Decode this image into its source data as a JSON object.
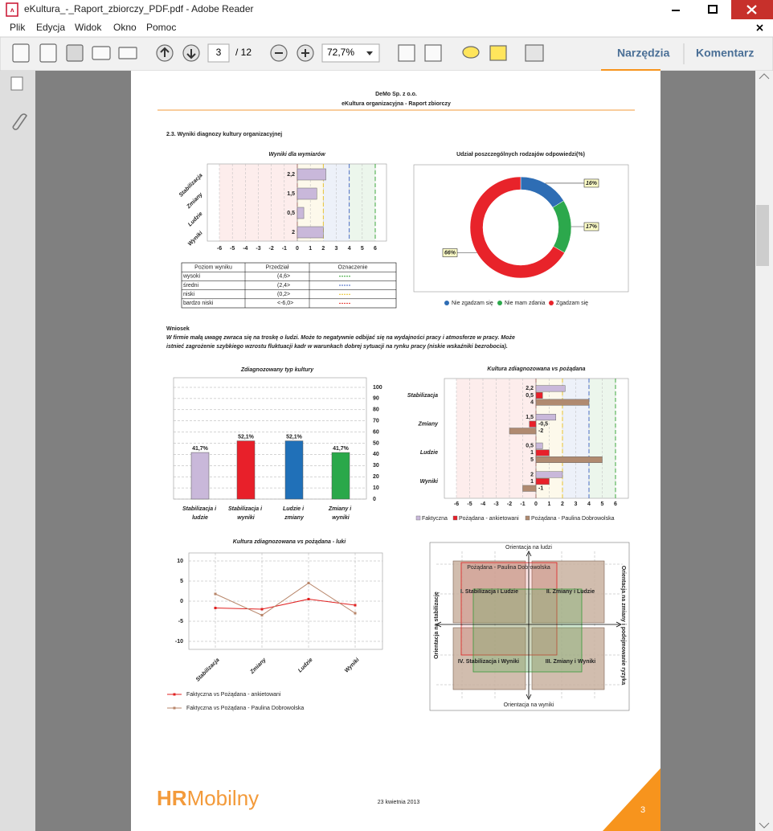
{
  "window": {
    "title": "eKultura_-_Raport_zbiorczy_PDF.pdf - Adobe Reader"
  },
  "menu": [
    "Plik",
    "Edycja",
    "Widok",
    "Okno",
    "Pomoc"
  ],
  "toolbar": {
    "page": "3",
    "page_count": "/ 12",
    "zoom": "72,7%",
    "tools": "Narzędzia",
    "comment": "Komentarz"
  },
  "report": {
    "company": "DeMo Sp. z o.o.",
    "subtitle": "eKultura organizacyjna - Raport zbiorczy",
    "section": "2.3. Wyniki diagnozy kultury organizacyjnej",
    "conclusion": {
      "heading": "Wniosek",
      "lines": [
        "W firmie małą uwagę zwraca się na troskę o ludzi. Może to negatywnie odbijać się na wydajności pracy i atmosferze w pracy. Może",
        "istnieć zagrożenie szybkiego wzrostu fluktuacji kadr w warunkach dobrej sytuacji na rynku pracy (niskie wskaźniki bezrobocia)."
      ]
    },
    "footer": {
      "logo_a": "HR",
      "logo_b": "Mobilny",
      "date": "23 kwietnia 2013",
      "page": "3"
    }
  },
  "charts": [
    {
      "type": "hbar",
      "title": "Wyniki dla wymiarów",
      "categories": [
        "Stabilizacja",
        "Zmiany",
        "Ludzie",
        "Wyniki"
      ],
      "values": [
        2.2,
        1.5,
        0.5,
        2
      ],
      "value_labels": [
        "2,2",
        "1,5",
        "0,5",
        "2"
      ],
      "color": "#c9b8da",
      "xlim": [
        -6,
        6
      ],
      "xticks": [
        -6,
        -5,
        -4,
        -3,
        -2,
        -1,
        0,
        1,
        2,
        3,
        4,
        5,
        6
      ],
      "legend_table": {
        "columns": [
          "Poziom wyniku",
          "Przedział",
          "Oznaczenie"
        ],
        "rows": [
          {
            "name": "wysoki",
            "range": "(4,6>",
            "color": "#2ca02c"
          },
          {
            "name": "średni",
            "range": "(2,4>",
            "color": "#3b5fc0"
          },
          {
            "name": "niski",
            "range": "(0,2>",
            "color": "#e8c020"
          },
          {
            "name": "bardzo niski",
            "range": "<-6,0>",
            "color": "#e8322a"
          }
        ]
      }
    },
    {
      "type": "donut",
      "title": "Udział poszczególnych rodzajów odpowiedzi(%)",
      "categories": [
        "Nie zgadzam się",
        "Nie mam zdania",
        "Zgadzam się"
      ],
      "values": [
        16,
        17,
        66
      ],
      "value_labels": [
        "16%",
        "17%",
        "66%"
      ],
      "colors": [
        "#2e6db4",
        "#2ca84c",
        "#e8232a"
      ]
    },
    {
      "type": "bar",
      "title": "Zdiagnozowany typ kultury",
      "categories": [
        "Stabilizacja i ludzie",
        "Stabilizacja i wyniki",
        "Ludzie i zmiany",
        "Zmiany i wyniki"
      ],
      "values": [
        41.7,
        52.1,
        52.1,
        41.7
      ],
      "value_labels": [
        "41,7%",
        "52,1%",
        "52,1%",
        "41,7%"
      ],
      "colors": [
        "#c9b8da",
        "#e8202a",
        "#2070b8",
        "#2aa84a"
      ],
      "ylim": [
        0,
        100
      ],
      "yticks": [
        0,
        10,
        20,
        30,
        40,
        50,
        60,
        70,
        80,
        90,
        100
      ],
      "grid": true
    },
    {
      "type": "hbar",
      "title": "Kultura zdiagnozowana vs pożądana",
      "categories": [
        "Stabilizacja",
        "Zmiany",
        "Ludzie",
        "Wyniki"
      ],
      "series": [
        {
          "name": "Faktyczna",
          "color": "#c9b8da",
          "values": [
            2.2,
            1.5,
            0.5,
            2
          ],
          "value_labels": [
            "2,2",
            "1,5",
            "0,5",
            "2"
          ]
        },
        {
          "name": "Pożądana - ankietowani",
          "color": "#e8202a",
          "values": [
            0.5,
            -0.5,
            1,
            1
          ],
          "value_labels": [
            "0,5",
            "-0,5",
            "1",
            "1"
          ]
        },
        {
          "name": "Pożądana - Paulina Dobrowolska",
          "color": "#b08a70",
          "values": [
            4,
            -2,
            5,
            -1
          ],
          "value_labels": [
            "4",
            "-2",
            "5",
            "-1"
          ]
        }
      ],
      "xlim": [
        -6,
        6
      ],
      "xticks": [
        -6,
        -5,
        -4,
        -3,
        -2,
        -1,
        0,
        1,
        2,
        3,
        4,
        5,
        6
      ]
    },
    {
      "type": "line",
      "title": "Kultura zdiagnozowana vs pożądana - luki",
      "categories": [
        "Stabilizacja",
        "Zmiany",
        "Ludzie",
        "Wyniki"
      ],
      "series": [
        {
          "name": "Faktyczna vs Pożądana - ankietowani",
          "color": "#e02020",
          "values": [
            -1.7,
            -2,
            0.5,
            -1
          ]
        },
        {
          "name": "Faktyczna vs Pożądana - Paulina Dobrowolska",
          "color": "#b8866a",
          "values": [
            1.8,
            -3.5,
            4.5,
            -3
          ]
        }
      ],
      "ylim": [
        -12,
        12
      ],
      "yticks": [
        -10,
        -5,
        0,
        5,
        10
      ],
      "grid": true
    },
    {
      "type": "quadrant",
      "axes": {
        "top": "Orientacja na ludzi",
        "bottom": "Orientacja na wyniki",
        "left": "Orientacja na stabilizację",
        "right": "Orientacja na zmiany i podejmowanie ryzyka"
      },
      "quadrants": [
        "I. Stabilizacja i Ludzie",
        "II. Zmiany i Ludzie",
        "IV. Stabilizacja i Wyniki",
        "III. Zmiany i Wyniki"
      ],
      "overlay": "Pożądana - Paulina Dobrowolska"
    }
  ]
}
